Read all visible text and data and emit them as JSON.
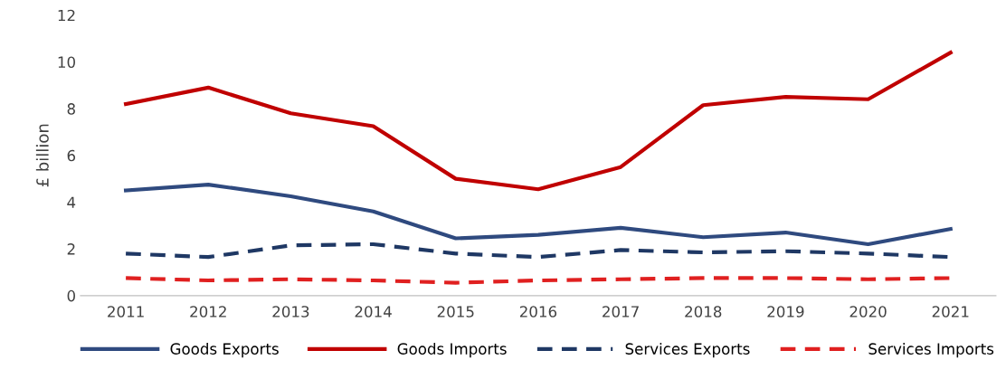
{
  "chart_data": {
    "type": "line",
    "ylabel": "£ billion",
    "categories": [
      "2011",
      "2012",
      "2013",
      "2014",
      "2015",
      "2016",
      "2017",
      "2018",
      "2019",
      "2020",
      "2021"
    ],
    "series": [
      {
        "name": "Goods Exports",
        "color": "#2f4a7f",
        "line_style": "solid",
        "values": [
          4.5,
          4.75,
          4.25,
          3.6,
          2.45,
          2.6,
          2.9,
          2.5,
          2.7,
          2.2,
          2.85
        ]
      },
      {
        "name": "Goods Imports",
        "color": "#c00000",
        "line_style": "solid",
        "values": [
          8.2,
          8.9,
          7.8,
          7.25,
          5.0,
          4.55,
          5.5,
          8.15,
          8.5,
          8.4,
          10.4
        ]
      },
      {
        "name": "Services Exports",
        "color": "#1f3864",
        "line_style": "dashed",
        "values": [
          1.8,
          1.65,
          2.15,
          2.2,
          1.8,
          1.65,
          1.95,
          1.85,
          1.9,
          1.8,
          1.65
        ]
      },
      {
        "name": "Services Imports",
        "color": "#e02020",
        "line_style": "dashed",
        "values": [
          0.75,
          0.65,
          0.7,
          0.65,
          0.55,
          0.65,
          0.7,
          0.75,
          0.75,
          0.7,
          0.75
        ]
      }
    ],
    "ylim": [
      0,
      12
    ],
    "yticks": [
      0,
      2,
      4,
      6,
      8,
      10,
      12
    ],
    "grid": false,
    "legend": "bottom",
    "marker": "none"
  }
}
